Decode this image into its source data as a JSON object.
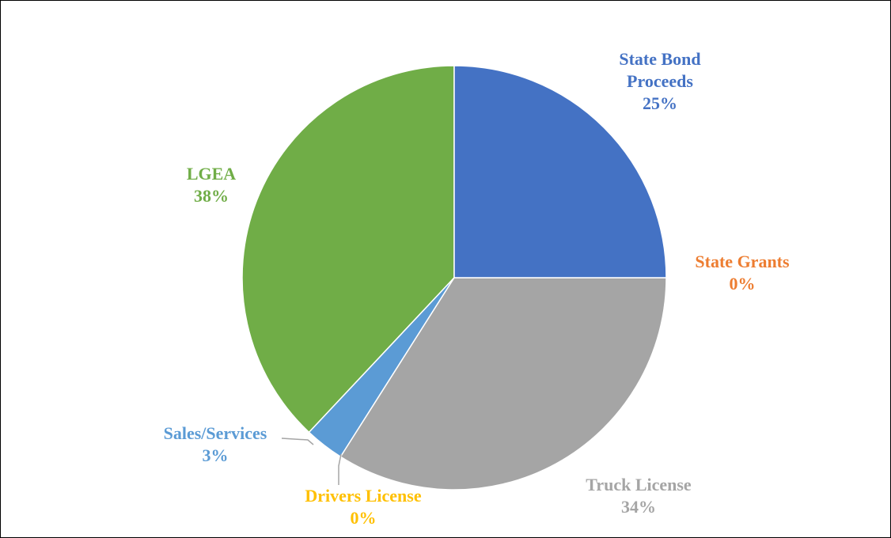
{
  "chart_data": {
    "type": "pie",
    "categories": [
      "State Bond Proceeds",
      "State Grants",
      "Truck License",
      "Drivers License",
      "Sales/Services",
      "LGEA"
    ],
    "values": [
      25,
      0,
      34,
      0,
      3,
      38
    ],
    "value_labels": [
      "25%",
      "0%",
      "34%",
      "0%",
      "3%",
      "38%"
    ],
    "colors": [
      "#4472c4",
      "#ed7d31",
      "#a5a5a5",
      "#ffc000",
      "#5b9bd5",
      "#70ad47"
    ]
  }
}
